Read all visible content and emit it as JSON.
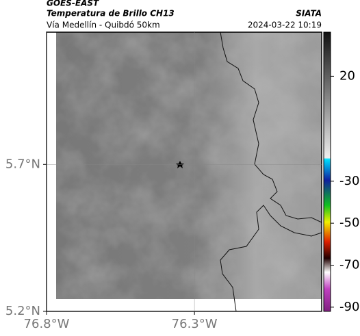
{
  "header": {
    "source": "GOES-EAST",
    "title": "Temperatura de Brillo CH13",
    "org": "SIATA",
    "subtitle": "Vía Medellín - Quibdó 50km",
    "date": "2024-03-22 10:19"
  },
  "map": {
    "xlim": [
      -76.8,
      -75.87
    ],
    "ylim": [
      5.2,
      6.15
    ],
    "xticks": [
      {
        "value": -76.8,
        "label": "76.8°W"
      },
      {
        "value": -76.3,
        "label": "76.3°W"
      }
    ],
    "yticks": [
      {
        "value": 5.2,
        "label": "5.2°N"
      },
      {
        "value": 5.7,
        "label": "5.7°N"
      }
    ],
    "colorbar": {
      "lim": [
        -92,
        41
      ],
      "ticks": [
        20,
        -30,
        -50,
        -70,
        -90
      ]
    }
  }
}
